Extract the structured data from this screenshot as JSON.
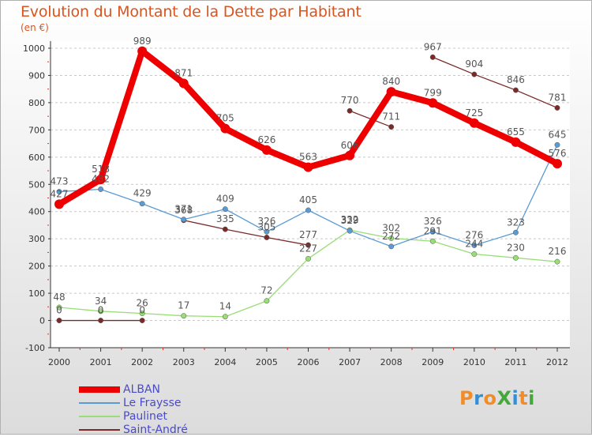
{
  "header": {
    "title": "Evolution du Montant de la Dette par Habitant",
    "unit": "(en €)"
  },
  "logo": {
    "text": "ProXiti",
    "colors": [
      "#f28c28",
      "#2f8fd8",
      "#f28c28",
      "#44a83a",
      "#2f8fd8",
      "#f28c28",
      "#44a83a"
    ]
  },
  "chart_data": {
    "type": "line",
    "title": "Evolution du Montant de la Dette par Habitant",
    "ylabel": "(en €)",
    "xlabel": "",
    "x": [
      "2000",
      "2001",
      "2002",
      "2003",
      "2004",
      "2005",
      "2006",
      "2007",
      "2008",
      "2009",
      "2010",
      "2011",
      "2012"
    ],
    "ylim": [
      -100,
      1000
    ],
    "yticks": [
      "-100",
      "0",
      "100",
      "200",
      "300",
      "400",
      "500",
      "600",
      "700",
      "800",
      "900",
      "1000"
    ],
    "grid": "dashed horizontal",
    "legend": "bottom-left",
    "series": [
      {
        "name": "Saint-André",
        "color": "#7b2a2a",
        "values": [
          0,
          0,
          0,
          368,
          335,
          305,
          277,
          770,
          711,
          967,
          904,
          846,
          781
        ],
        "labels": [
          "0",
          "0",
          "0",
          "368",
          "335",
          "305",
          "277",
          "770",
          "711",
          "967",
          "904",
          "846",
          "781"
        ],
        "breaks_after": [
          2,
          6,
          8
        ]
      },
      {
        "name": "Paulinet",
        "color": "#99dd77",
        "values": [
          48,
          34,
          26,
          17,
          14,
          72,
          227,
          332,
          302,
          291,
          244,
          230,
          216
        ],
        "labels": [
          "48",
          "34",
          "26",
          "17",
          "14",
          "72",
          "227",
          "332",
          "302",
          "291",
          "244",
          "230",
          "216"
        ]
      },
      {
        "name": "Le Fraysse",
        "color": "#5b9bd5",
        "values": [
          473,
          482,
          429,
          371,
          409,
          326,
          405,
          329,
          272,
          326,
          276,
          323,
          645
        ],
        "labels": [
          "473",
          "482",
          "429",
          "371",
          "409",
          "326",
          "405",
          "329",
          "272",
          "326",
          "276",
          "323",
          "645"
        ]
      },
      {
        "name": "ALBAN",
        "color": "#ee0000",
        "values": [
          427,
          518,
          989,
          871,
          705,
          626,
          563,
          606,
          840,
          799,
          725,
          655,
          576
        ],
        "labels": [
          "427",
          "518",
          "989",
          "871",
          "705",
          "626",
          "563",
          "606",
          "840",
          "799",
          "725",
          "655",
          "576"
        ]
      }
    ]
  },
  "legend": {
    "items": [
      {
        "name": "ALBAN",
        "color": "#ee0000",
        "width": 8
      },
      {
        "name": "Le Fraysse",
        "color": "#5b9bd5",
        "width": 2
      },
      {
        "name": "Paulinet",
        "color": "#99dd77",
        "width": 2
      },
      {
        "name": "Saint-André",
        "color": "#7b2a2a",
        "width": 2
      }
    ]
  }
}
